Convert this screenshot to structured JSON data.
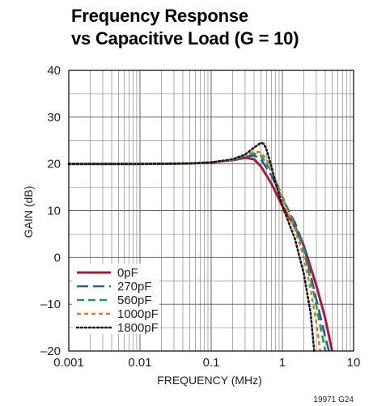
{
  "chart_data": {
    "type": "line",
    "title": [
      "Frequency Response",
      "vs Capacitive Load (G = 10)"
    ],
    "xlabel": "FREQUENCY (MHz)",
    "ylabel": "GAIN (dB)",
    "x_scale": "log",
    "xlim": [
      0.001,
      10
    ],
    "ylim": [
      -20,
      40
    ],
    "x_ticks": [
      {
        "value": 0.001,
        "label": "0.001"
      },
      {
        "value": 0.01,
        "label": "0.01"
      },
      {
        "value": 0.1,
        "label": "0.1"
      },
      {
        "value": 1,
        "label": "1"
      },
      {
        "value": 10,
        "label": "10"
      }
    ],
    "y_ticks": [
      {
        "value": 40,
        "label": "40"
      },
      {
        "value": 30,
        "label": "30"
      },
      {
        "value": 20,
        "label": "20"
      },
      {
        "value": 10,
        "label": "10"
      },
      {
        "value": 0,
        "label": "0"
      },
      {
        "value": -10,
        "label": "–10"
      },
      {
        "value": -20,
        "label": "–20"
      }
    ],
    "grid": true,
    "legend_position": "bottom-left",
    "series": [
      {
        "name": "0pF",
        "color": "#b0173a",
        "dash": "solid",
        "x": [
          0.001,
          0.01,
          0.05,
          0.1,
          0.2,
          0.3,
          0.4,
          0.5,
          0.7,
          1.0,
          1.5,
          2.0,
          3.0,
          4.0,
          5.0
        ],
        "y": [
          20.0,
          20.0,
          20.1,
          20.3,
          20.8,
          21.3,
          21.0,
          19.5,
          15.8,
          11.0,
          6.5,
          2.5,
          -6.0,
          -13.0,
          -20.0
        ]
      },
      {
        "name": "270pF",
        "color": "#1f5fa8",
        "dash": "long",
        "x": [
          0.001,
          0.01,
          0.05,
          0.1,
          0.2,
          0.3,
          0.4,
          0.5,
          0.7,
          1.0,
          1.5,
          2.0,
          3.0,
          4.0,
          4.5
        ],
        "y": [
          20.0,
          20.0,
          20.1,
          20.3,
          20.8,
          21.5,
          21.8,
          21.0,
          17.5,
          12.5,
          7.5,
          2.5,
          -9.0,
          -17.0,
          -20.0
        ]
      },
      {
        "name": "560pF",
        "color": "#1e9a52",
        "dash": "medium",
        "x": [
          0.001,
          0.01,
          0.05,
          0.1,
          0.2,
          0.3,
          0.4,
          0.5,
          0.7,
          1.0,
          1.5,
          2.0,
          2.8,
          3.5,
          4.0
        ],
        "y": [
          20.0,
          20.0,
          20.1,
          20.3,
          20.9,
          21.8,
          22.2,
          21.8,
          18.5,
          13.0,
          7.0,
          1.5,
          -8.0,
          -15.5,
          -20.0
        ]
      },
      {
        "name": "1000pF",
        "color": "#e07a2b",
        "dash": "short",
        "x": [
          0.001,
          0.01,
          0.05,
          0.1,
          0.2,
          0.3,
          0.4,
          0.5,
          0.6,
          0.8,
          1.0,
          1.5,
          2.0,
          2.5,
          3.0,
          3.4
        ],
        "y": [
          20.0,
          20.0,
          20.1,
          20.3,
          20.9,
          21.9,
          22.6,
          22.5,
          21.0,
          16.5,
          12.5,
          6.0,
          0.0,
          -7.0,
          -14.0,
          -20.0
        ]
      },
      {
        "name": "1800pF",
        "color": "#1a1a1a",
        "dash": "dotted",
        "x": [
          0.001,
          0.01,
          0.05,
          0.1,
          0.2,
          0.3,
          0.4,
          0.5,
          0.55,
          0.6,
          0.7,
          0.8,
          1.0,
          1.5,
          2.0,
          2.5,
          2.8
        ],
        "y": [
          20.0,
          20.0,
          20.1,
          20.3,
          21.0,
          22.0,
          23.5,
          24.5,
          24.3,
          23.0,
          19.5,
          16.0,
          11.0,
          4.0,
          -3.5,
          -12.0,
          -20.0
        ]
      }
    ],
    "figure_id": "19971 G24"
  }
}
